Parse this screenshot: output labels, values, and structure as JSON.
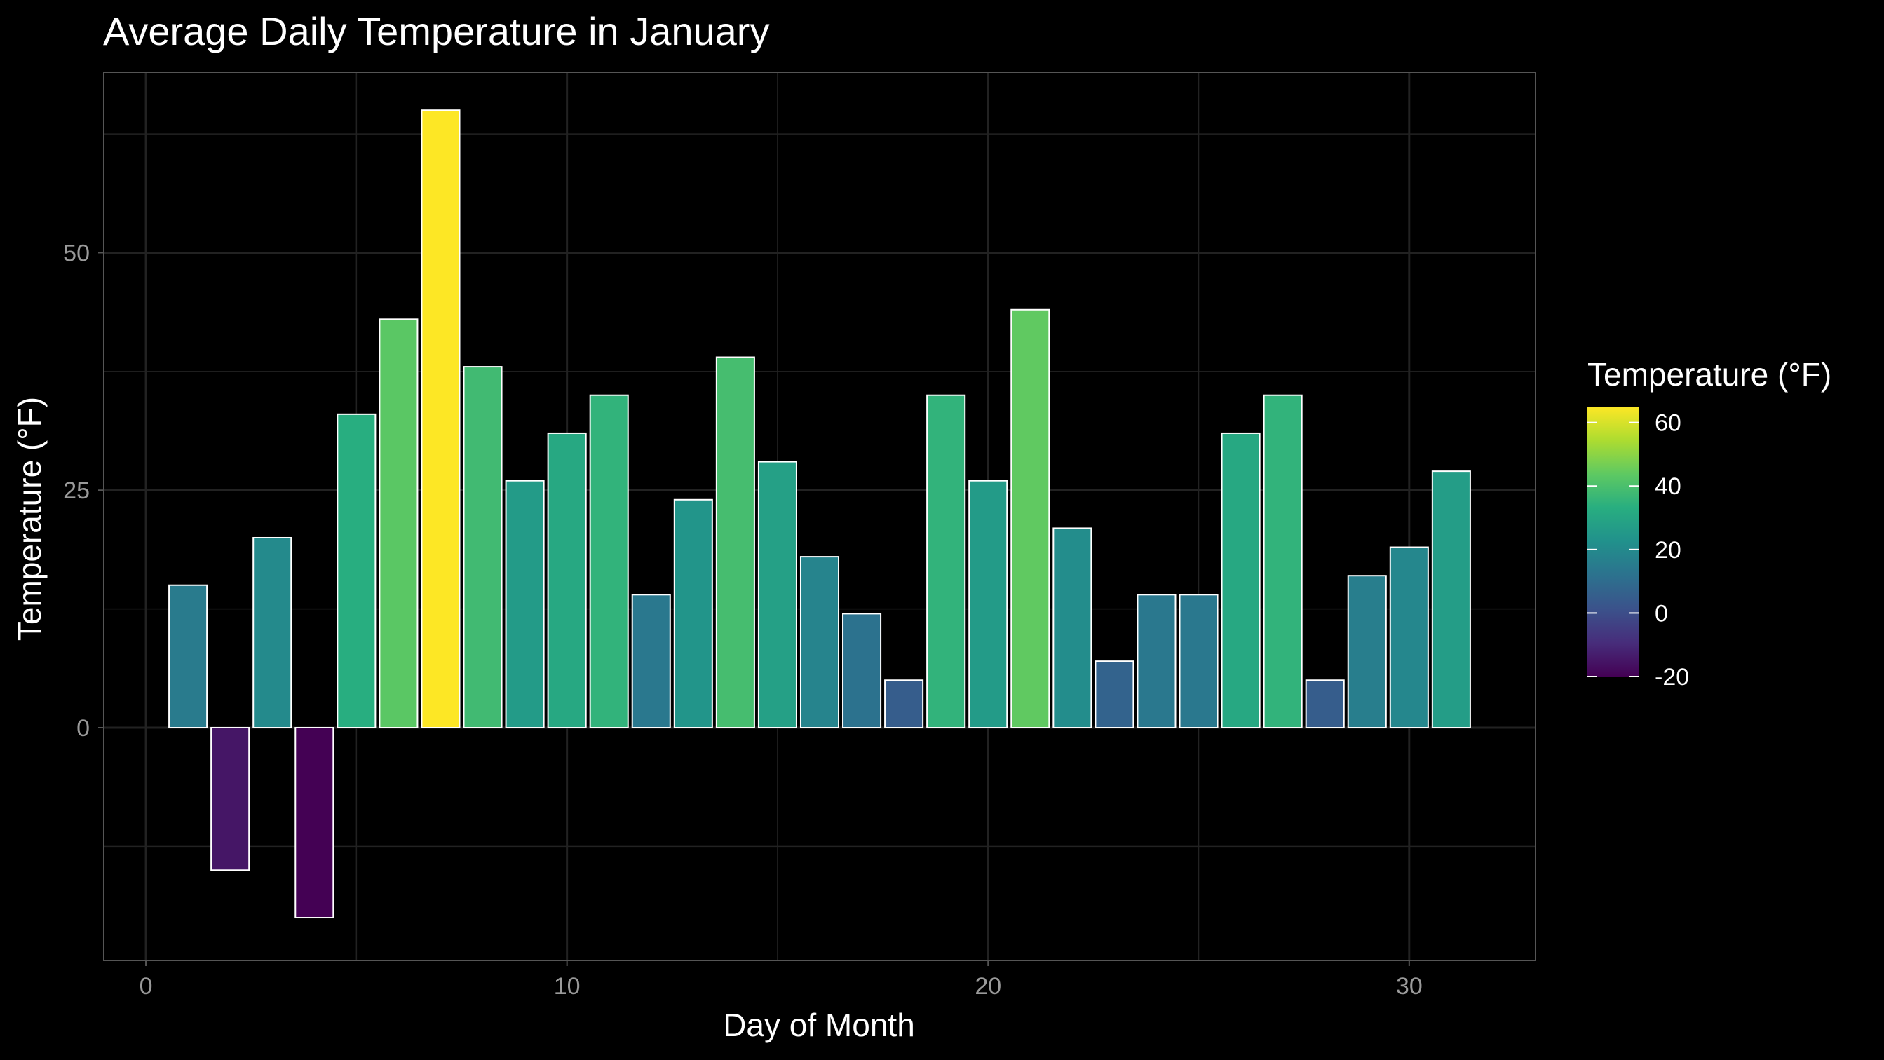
{
  "chart_data": {
    "type": "bar",
    "title": "Average Daily Temperature in January",
    "xlabel": "Day of Month",
    "ylabel": "Temperature (°F)",
    "x": [
      1,
      2,
      3,
      4,
      5,
      6,
      7,
      8,
      9,
      10,
      11,
      12,
      13,
      14,
      15,
      16,
      17,
      18,
      19,
      20,
      21,
      22,
      23,
      24,
      25,
      26,
      27,
      28,
      29,
      30,
      31
    ],
    "values": [
      15,
      -15,
      20,
      -20,
      33,
      43,
      65,
      38,
      26,
      31,
      35,
      14,
      24,
      39,
      28,
      18,
      12,
      5,
      35,
      26,
      44,
      21,
      7,
      14,
      14,
      31,
      35,
      5,
      16,
      19,
      27
    ],
    "xlim": [
      -1,
      33
    ],
    "ylim": [
      -24.5,
      69
    ],
    "x_ticks": [
      0,
      10,
      20,
      30
    ],
    "y_ticks": [
      0,
      25,
      50
    ],
    "grid": true,
    "legend": {
      "title": "Temperature (°F)",
      "placement": "right",
      "type": "colorbar",
      "range": [
        -20,
        65
      ],
      "ticks": [
        60,
        40,
        20,
        0,
        -20
      ],
      "palette": "viridis"
    },
    "colors": {
      "background": "#000000",
      "grid": "#222222",
      "panel_border": "#555555",
      "bar_outline": "#ffffff"
    }
  }
}
